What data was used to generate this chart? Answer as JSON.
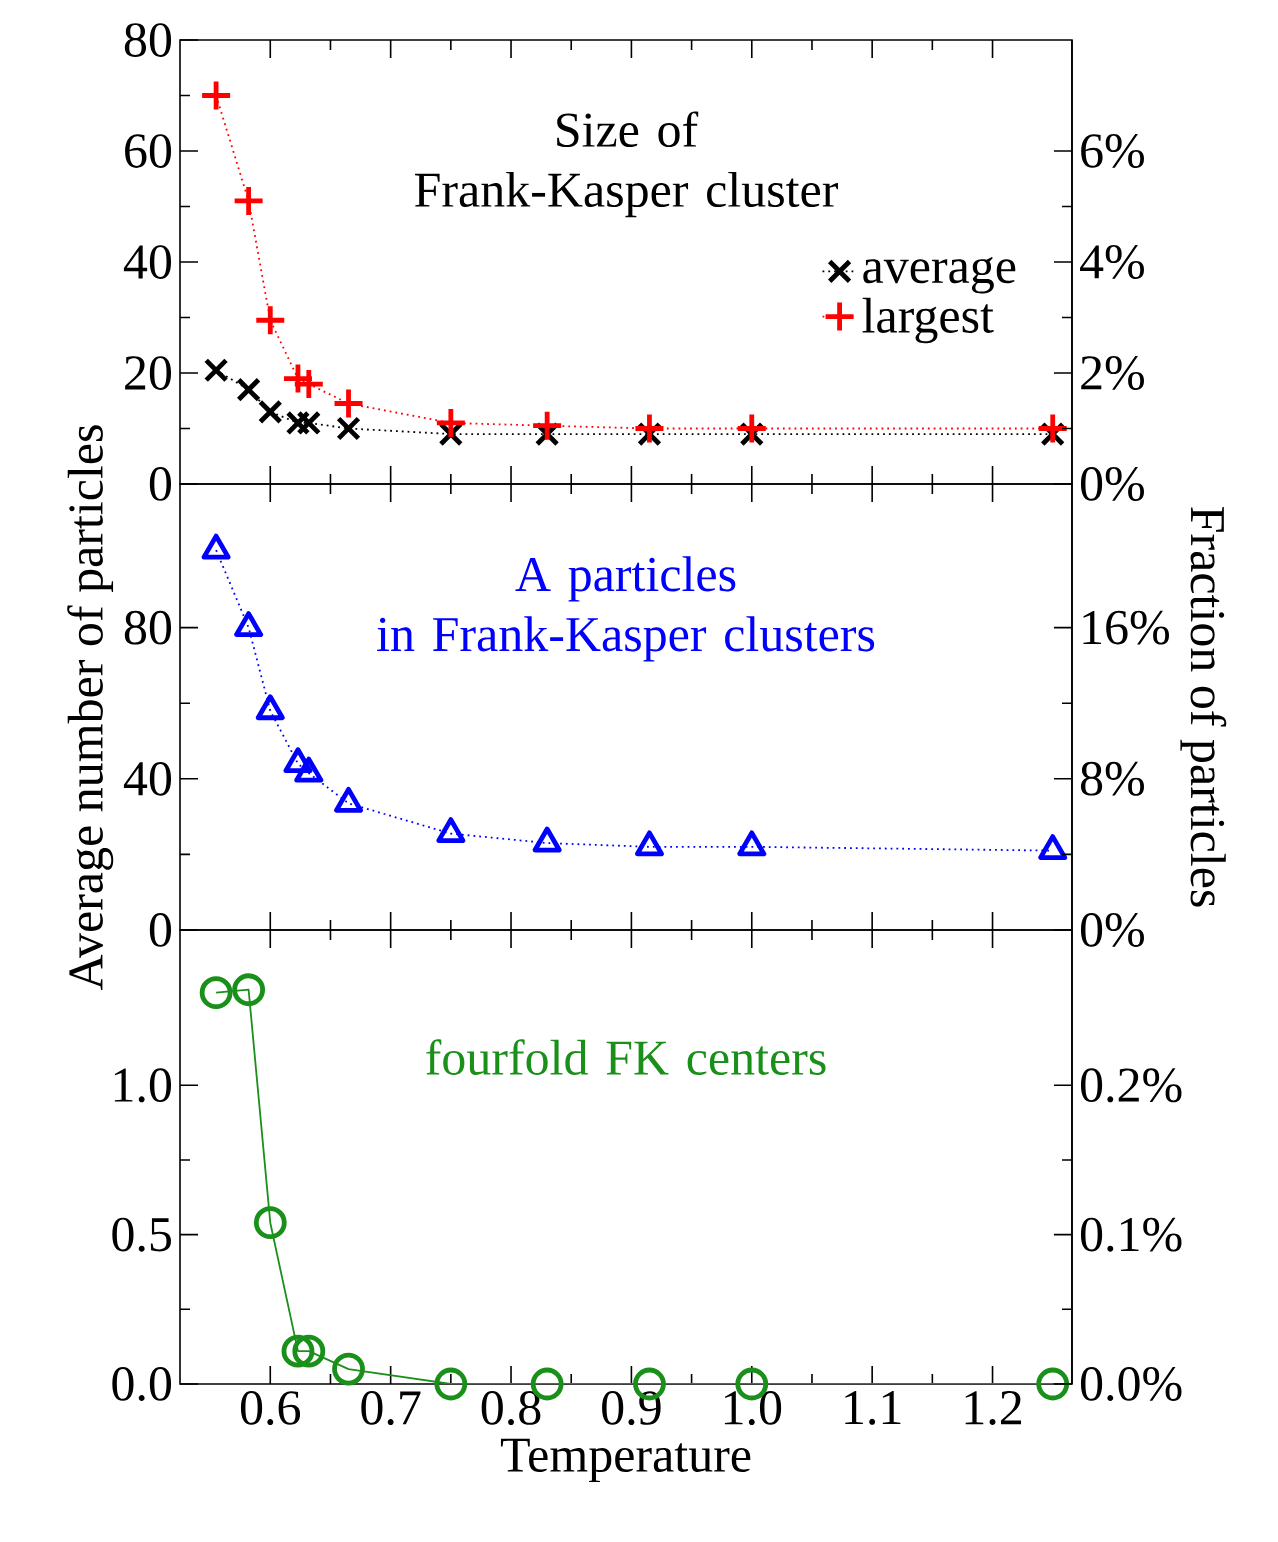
{
  "chart_data": [
    {
      "type": "line",
      "title": "Size of\nFrank-Kasper cluster",
      "x": [
        0.555,
        0.582,
        0.6,
        0.623,
        0.632,
        0.665,
        0.75,
        0.83,
        0.915,
        1.0,
        1.25
      ],
      "series": [
        {
          "name": "average",
          "color": "#000000",
          "marker": "cross",
          "line_style": "dotted",
          "values": [
            20.5,
            17,
            13,
            11,
            11,
            10,
            9,
            9,
            9,
            9,
            9
          ]
        },
        {
          "name": "largest",
          "color": "#ff0000",
          "marker": "plus",
          "line_style": "dotted",
          "values": [
            70,
            51,
            29.5,
            19,
            18,
            14.5,
            11,
            10.5,
            10,
            10,
            10
          ]
        }
      ],
      "xlim": [
        0.525,
        1.266
      ],
      "xticks": [
        {
          "value": 0.6,
          "label": null
        },
        {
          "value": 0.7,
          "label": null
        },
        {
          "value": 0.8,
          "label": null
        },
        {
          "value": 0.9,
          "label": null
        },
        {
          "value": 1,
          "label": null
        },
        {
          "value": 1.1,
          "label": null
        },
        {
          "value": 1.2,
          "label": null
        }
      ],
      "ylim": [
        0,
        80
      ],
      "yticks": [
        0,
        20,
        40,
        60,
        80
      ],
      "y2lim": [
        0,
        8
      ],
      "y2ticks": [
        {
          "value": 0,
          "label": "0%"
        },
        {
          "value": 2,
          "label": "2%"
        },
        {
          "value": 4,
          "label": "4%"
        },
        {
          "value": 6,
          "label": "6%"
        }
      ],
      "tick_labels": "y",
      "legend": "right"
    },
    {
      "type": "line",
      "title": "A particles\nin Frank-Kasper clusters",
      "ylabel": "Average number of particles",
      "y2label": "Fraction of particles",
      "x": [
        0.555,
        0.582,
        0.6,
        0.623,
        0.632,
        0.665,
        0.75,
        0.83,
        0.915,
        1.0,
        1.25
      ],
      "series": [
        {
          "color": "#0000ff",
          "marker": "triangle",
          "line_style": "dotted",
          "values": [
            100.5,
            80,
            58,
            44,
            41.5,
            33.5,
            25.5,
            23,
            22,
            22,
            21
          ]
        }
      ],
      "xlim": [
        0.525,
        1.266
      ],
      "xticks": [
        {
          "value": 0.6,
          "label": null
        },
        {
          "value": 0.7,
          "label": null
        },
        {
          "value": 0.8,
          "label": null
        },
        {
          "value": 0.9,
          "label": null
        },
        {
          "value": 1,
          "label": null
        },
        {
          "value": 1.1,
          "label": null
        },
        {
          "value": 1.2,
          "label": null
        }
      ],
      "ylim": [
        0,
        118
      ],
      "yticks": [
        0,
        40,
        80
      ],
      "y2lim": [
        0,
        23.6
      ],
      "y2ticks": [
        {
          "value": 0,
          "label": "0%"
        },
        {
          "value": 8,
          "label": "8%"
        },
        {
          "value": 16,
          "label": "16%"
        }
      ],
      "tick_labels": "y"
    },
    {
      "type": "line",
      "title": "fourfold FK centers",
      "xlabel": "Temperature",
      "x": [
        0.555,
        0.582,
        0.6,
        0.623,
        0.632,
        0.665,
        0.75,
        0.83,
        0.915,
        1.0,
        1.25
      ],
      "series": [
        {
          "color": "#1a8f1a",
          "marker": "circle",
          "line_style": "solid",
          "values": [
            1.31,
            1.32,
            0.54,
            0.11,
            0.11,
            0.05,
            0,
            0,
            0,
            0,
            0
          ]
        }
      ],
      "xlim": [
        0.525,
        1.266
      ],
      "xticks": [
        0.6,
        0.7,
        0.8,
        0.9,
        {
          "value": 1,
          "label": "1.0"
        },
        1.1,
        1.2
      ],
      "ylim": [
        0,
        1.52
      ],
      "yticks": [
        {
          "value": 0,
          "label": "0.0"
        },
        0.5,
        {
          "value": 1,
          "label": "1.0"
        }
      ],
      "y2lim": [
        0,
        0.304
      ],
      "y2ticks": [
        {
          "value": 0,
          "label": "0.0%"
        },
        {
          "value": 0.1,
          "label": "0.1%"
        },
        {
          "value": 0.2,
          "label": "0.2%"
        }
      ]
    }
  ]
}
